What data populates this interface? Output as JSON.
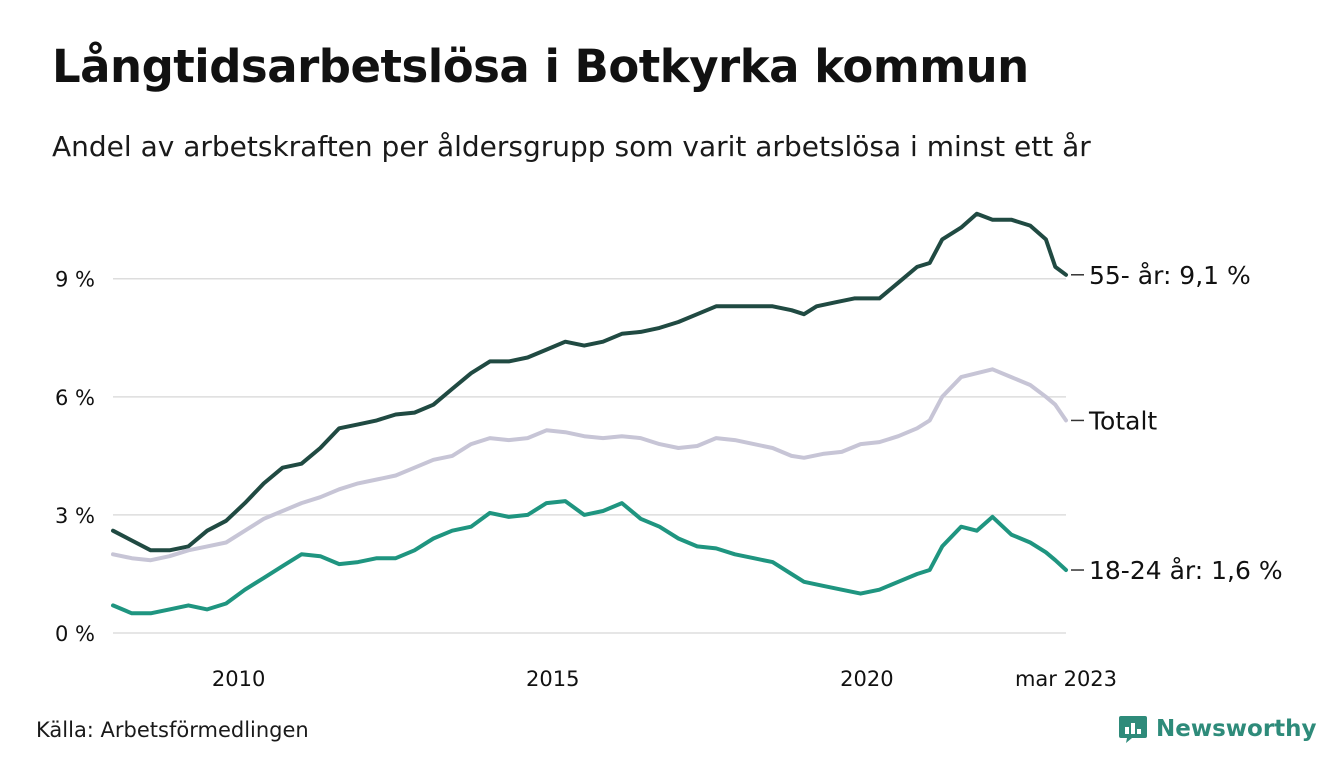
{
  "header": {
    "title": "Långtidsarbetslösa i Botkyrka kommun",
    "subtitle": "Andel av arbetskraften per åldersgrupp som varit arbetslösa i minst ett år"
  },
  "footer": {
    "source": "Källa: Arbetsförmedlingen",
    "brand": "Newsworthy",
    "brand_icon": "bar-chart-logo-icon"
  },
  "colors": {
    "series_55": "#204a42",
    "series_total": "#c7c5d6",
    "series_18_24": "#1f9580",
    "grid": "#dddddd",
    "text": "#111111",
    "brand": "#2e8b7a"
  },
  "chart_data": {
    "type": "line",
    "xlim": [
      2008.0,
      2023.17
    ],
    "ylim": [
      0,
      11
    ],
    "x_ticks": [
      {
        "value": 2010,
        "label": "2010"
      },
      {
        "value": 2015,
        "label": "2015"
      },
      {
        "value": 2020,
        "label": "2020"
      },
      {
        "value": 2023.17,
        "label": "mar 2023"
      }
    ],
    "y_ticks": [
      {
        "value": 0,
        "label": "0 %"
      },
      {
        "value": 3,
        "label": "3 %"
      },
      {
        "value": 6,
        "label": "6 %"
      },
      {
        "value": 9,
        "label": "9 %"
      }
    ],
    "grid": "horizontal",
    "series": [
      {
        "name": "55- år",
        "end_label": "55- år: 9,1 %",
        "color_key": "series_55",
        "points": [
          [
            2008.0,
            2.6
          ],
          [
            2008.3,
            2.35
          ],
          [
            2008.6,
            2.1
          ],
          [
            2008.9,
            2.1
          ],
          [
            2009.2,
            2.2
          ],
          [
            2009.5,
            2.6
          ],
          [
            2009.8,
            2.85
          ],
          [
            2010.1,
            3.3
          ],
          [
            2010.4,
            3.8
          ],
          [
            2010.7,
            4.2
          ],
          [
            2011.0,
            4.3
          ],
          [
            2011.3,
            4.7
          ],
          [
            2011.6,
            5.2
          ],
          [
            2011.9,
            5.3
          ],
          [
            2012.2,
            5.4
          ],
          [
            2012.5,
            5.55
          ],
          [
            2012.8,
            5.6
          ],
          [
            2013.1,
            5.8
          ],
          [
            2013.4,
            6.2
          ],
          [
            2013.7,
            6.6
          ],
          [
            2014.0,
            6.9
          ],
          [
            2014.3,
            6.9
          ],
          [
            2014.6,
            7.0
          ],
          [
            2014.9,
            7.2
          ],
          [
            2015.2,
            7.4
          ],
          [
            2015.5,
            7.3
          ],
          [
            2015.8,
            7.4
          ],
          [
            2016.1,
            7.6
          ],
          [
            2016.4,
            7.65
          ],
          [
            2016.7,
            7.75
          ],
          [
            2017.0,
            7.9
          ],
          [
            2017.3,
            8.1
          ],
          [
            2017.6,
            8.3
          ],
          [
            2017.9,
            8.3
          ],
          [
            2018.2,
            8.3
          ],
          [
            2018.5,
            8.3
          ],
          [
            2018.8,
            8.2
          ],
          [
            2019.0,
            8.1
          ],
          [
            2019.2,
            8.3
          ],
          [
            2019.5,
            8.4
          ],
          [
            2019.8,
            8.5
          ],
          [
            2020.0,
            8.5
          ],
          [
            2020.2,
            8.5
          ],
          [
            2020.5,
            8.9
          ],
          [
            2020.8,
            9.3
          ],
          [
            2021.0,
            9.4
          ],
          [
            2021.2,
            10.0
          ],
          [
            2021.5,
            10.3
          ],
          [
            2021.75,
            10.65
          ],
          [
            2022.0,
            10.5
          ],
          [
            2022.3,
            10.5
          ],
          [
            2022.6,
            10.35
          ],
          [
            2022.85,
            10.0
          ],
          [
            2023.0,
            9.3
          ],
          [
            2023.17,
            9.1
          ]
        ]
      },
      {
        "name": "Totalt",
        "end_label": "Totalt",
        "color_key": "series_total",
        "points": [
          [
            2008.0,
            2.0
          ],
          [
            2008.3,
            1.9
          ],
          [
            2008.6,
            1.85
          ],
          [
            2008.9,
            1.95
          ],
          [
            2009.2,
            2.1
          ],
          [
            2009.5,
            2.2
          ],
          [
            2009.8,
            2.3
          ],
          [
            2010.1,
            2.6
          ],
          [
            2010.4,
            2.9
          ],
          [
            2010.7,
            3.1
          ],
          [
            2011.0,
            3.3
          ],
          [
            2011.3,
            3.45
          ],
          [
            2011.6,
            3.65
          ],
          [
            2011.9,
            3.8
          ],
          [
            2012.2,
            3.9
          ],
          [
            2012.5,
            4.0
          ],
          [
            2012.8,
            4.2
          ],
          [
            2013.1,
            4.4
          ],
          [
            2013.4,
            4.5
          ],
          [
            2013.7,
            4.8
          ],
          [
            2014.0,
            4.95
          ],
          [
            2014.3,
            4.9
          ],
          [
            2014.6,
            4.95
          ],
          [
            2014.9,
            5.15
          ],
          [
            2015.2,
            5.1
          ],
          [
            2015.5,
            5.0
          ],
          [
            2015.8,
            4.95
          ],
          [
            2016.1,
            5.0
          ],
          [
            2016.4,
            4.95
          ],
          [
            2016.7,
            4.8
          ],
          [
            2017.0,
            4.7
          ],
          [
            2017.3,
            4.75
          ],
          [
            2017.6,
            4.95
          ],
          [
            2017.9,
            4.9
          ],
          [
            2018.2,
            4.8
          ],
          [
            2018.5,
            4.7
          ],
          [
            2018.8,
            4.5
          ],
          [
            2019.0,
            4.45
          ],
          [
            2019.3,
            4.55
          ],
          [
            2019.6,
            4.6
          ],
          [
            2019.9,
            4.8
          ],
          [
            2020.2,
            4.85
          ],
          [
            2020.5,
            5.0
          ],
          [
            2020.8,
            5.2
          ],
          [
            2021.0,
            5.4
          ],
          [
            2021.2,
            6.0
          ],
          [
            2021.5,
            6.5
          ],
          [
            2021.75,
            6.6
          ],
          [
            2022.0,
            6.7
          ],
          [
            2022.3,
            6.5
          ],
          [
            2022.6,
            6.3
          ],
          [
            2022.85,
            6.0
          ],
          [
            2023.0,
            5.8
          ],
          [
            2023.17,
            5.4
          ]
        ]
      },
      {
        "name": "18-24 år",
        "end_label": "18-24 år: 1,6 %",
        "color_key": "series_18_24",
        "points": [
          [
            2008.0,
            0.7
          ],
          [
            2008.3,
            0.5
          ],
          [
            2008.6,
            0.5
          ],
          [
            2008.9,
            0.6
          ],
          [
            2009.2,
            0.7
          ],
          [
            2009.5,
            0.6
          ],
          [
            2009.8,
            0.75
          ],
          [
            2010.1,
            1.1
          ],
          [
            2010.4,
            1.4
          ],
          [
            2010.7,
            1.7
          ],
          [
            2011.0,
            2.0
          ],
          [
            2011.3,
            1.95
          ],
          [
            2011.6,
            1.75
          ],
          [
            2011.9,
            1.8
          ],
          [
            2012.2,
            1.9
          ],
          [
            2012.5,
            1.9
          ],
          [
            2012.8,
            2.1
          ],
          [
            2013.1,
            2.4
          ],
          [
            2013.4,
            2.6
          ],
          [
            2013.7,
            2.7
          ],
          [
            2014.0,
            3.05
          ],
          [
            2014.3,
            2.95
          ],
          [
            2014.6,
            3.0
          ],
          [
            2014.9,
            3.3
          ],
          [
            2015.2,
            3.35
          ],
          [
            2015.5,
            3.0
          ],
          [
            2015.8,
            3.1
          ],
          [
            2016.1,
            3.3
          ],
          [
            2016.4,
            2.9
          ],
          [
            2016.7,
            2.7
          ],
          [
            2017.0,
            2.4
          ],
          [
            2017.3,
            2.2
          ],
          [
            2017.6,
            2.15
          ],
          [
            2017.9,
            2.0
          ],
          [
            2018.2,
            1.9
          ],
          [
            2018.5,
            1.8
          ],
          [
            2018.8,
            1.5
          ],
          [
            2019.0,
            1.3
          ],
          [
            2019.3,
            1.2
          ],
          [
            2019.6,
            1.1
          ],
          [
            2019.9,
            1.0
          ],
          [
            2020.2,
            1.1
          ],
          [
            2020.5,
            1.3
          ],
          [
            2020.8,
            1.5
          ],
          [
            2021.0,
            1.6
          ],
          [
            2021.2,
            2.2
          ],
          [
            2021.5,
            2.7
          ],
          [
            2021.75,
            2.6
          ],
          [
            2022.0,
            2.95
          ],
          [
            2022.3,
            2.5
          ],
          [
            2022.6,
            2.3
          ],
          [
            2022.85,
            2.05
          ],
          [
            2023.0,
            1.85
          ],
          [
            2023.17,
            1.6
          ]
        ]
      }
    ]
  }
}
